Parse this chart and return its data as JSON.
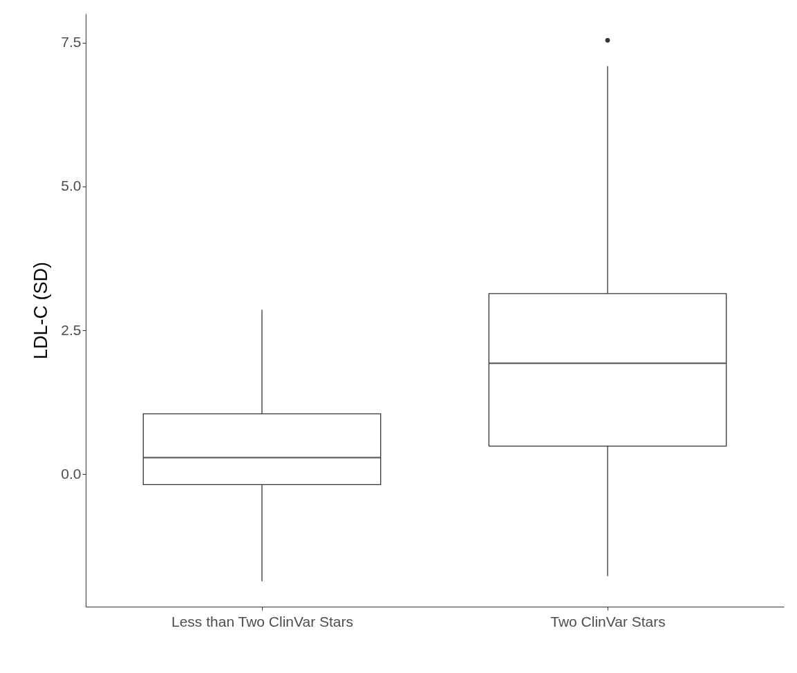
{
  "chart_data": {
    "type": "box",
    "ylabel": "LDL-C (SD)",
    "categories": [
      "Less than Two ClinVar Stars",
      "Two ClinVar Stars"
    ],
    "boxes": [
      {
        "low": -1.86,
        "q1": -0.18,
        "median": 0.29,
        "q3": 1.05,
        "high": 2.86
      },
      {
        "low": -1.77,
        "q1": 0.49,
        "median": 1.93,
        "q3": 3.14,
        "high": 7.09,
        "outliers": [
          7.54
        ]
      }
    ],
    "ylim": [
      -2.3,
      8.0
    ],
    "yticks": [
      {
        "value": 0.0,
        "label": "0.0"
      },
      {
        "value": 2.5,
        "label": "2.5"
      },
      {
        "value": 5.0,
        "label": "5.0"
      },
      {
        "value": 7.5,
        "label": "7.5"
      }
    ],
    "grid": false
  }
}
